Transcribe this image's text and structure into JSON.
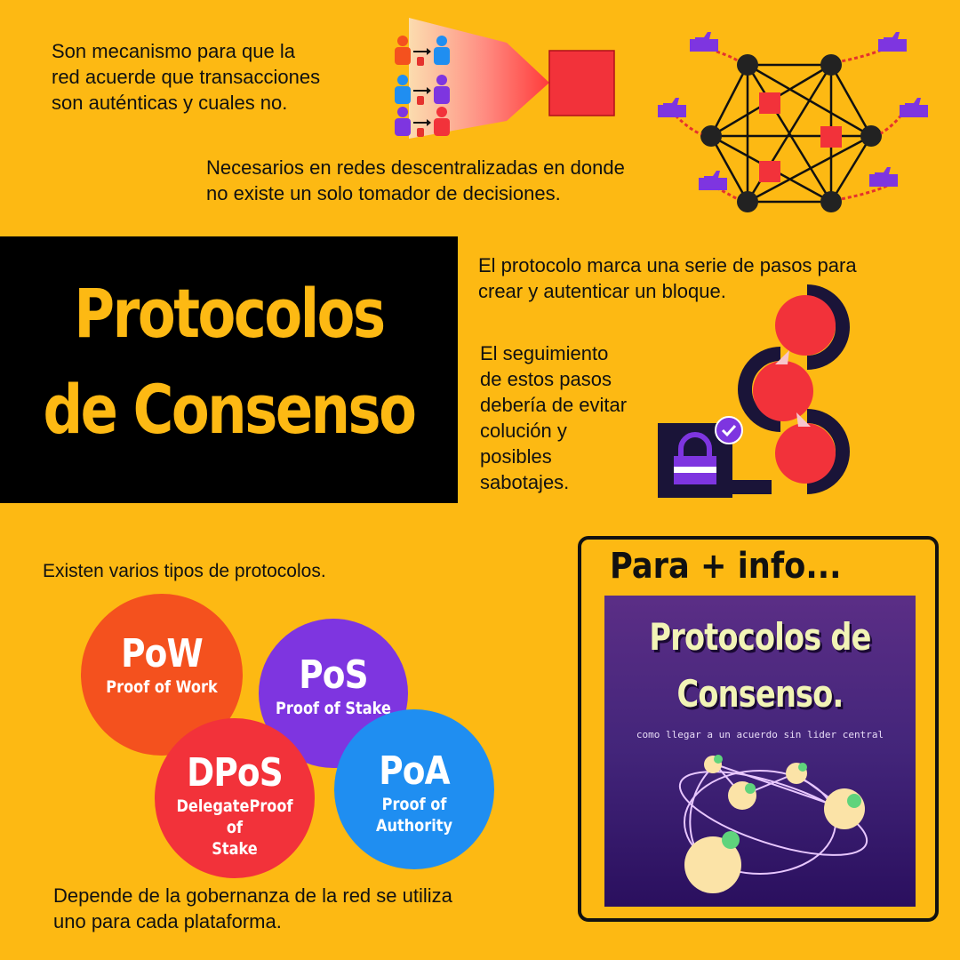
{
  "intro": {
    "lines": [
      "Son mecanismo para que la",
      "red acuerde que transacciones",
      "son auténticas y cuales no."
    ]
  },
  "decentralized": {
    "lines": [
      "Necesarios en redes descentralizadas en donde",
      "no existe un solo tomador de decisiones."
    ]
  },
  "title": {
    "line1": "Protocolos",
    "line2": "de Consenso"
  },
  "protocol_steps": {
    "lines": [
      "El protocolo marca una serie de pasos para",
      "crear y autenticar un bloque."
    ]
  },
  "follow_steps": {
    "lines": [
      "El seguimiento",
      "de estos pasos",
      "debería de evitar",
      "colución y",
      "posibles",
      "sabotajes."
    ]
  },
  "types_intro": "Existen varios tipos de protocolos.",
  "protocols": [
    {
      "abbr": "PoW",
      "full": "Proof of Work",
      "color": "#f4511e"
    },
    {
      "abbr": "PoS",
      "full": "Proof of Stake",
      "color": "#7e35e0"
    },
    {
      "abbr": "DPoS",
      "full_lines": [
        "DelegateProof of",
        "Stake"
      ],
      "color": "#f2323a"
    },
    {
      "abbr": "PoA",
      "full": "Proof of Authority",
      "color": "#1f8ef1"
    }
  ],
  "governance": {
    "lines": [
      "Depende de la gobernanza de la red se utiliza",
      "uno para cada plataforma."
    ]
  },
  "more_info": {
    "title": "Para + info...",
    "cover_title_1": "Protocolos de",
    "cover_title_2": "Consenso.",
    "cover_subtitle": "como llegar a un acuerdo sin lider central"
  },
  "icons": [
    "people-transfer-icon",
    "block-icon",
    "network-thumbs-icon",
    "step-chain-icon",
    "lock-icon",
    "check-icon"
  ],
  "colors": {
    "background": "#fdb913",
    "red": "#f2323a",
    "black": "#000000",
    "purple": "#7e35e0"
  }
}
